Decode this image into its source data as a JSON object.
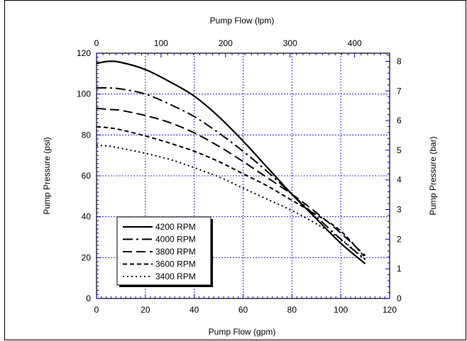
{
  "chart_data": {
    "type": "line",
    "xlabel_bottom": "Pump Flow (gpm)",
    "xlabel_top": "Pump Flow (lpm)",
    "ylabel_left": "Pump Pressure (psi)",
    "ylabel_right": "Pump Pressure (bar)",
    "xlim": [
      0,
      120
    ],
    "ylim": [
      0,
      120
    ],
    "x_ticks": [
      0,
      20,
      40,
      60,
      80,
      100,
      120
    ],
    "y_ticks": [
      0,
      20,
      40,
      60,
      80,
      100,
      120
    ],
    "x_top_ticks": [
      0,
      100,
      200,
      300,
      400
    ],
    "y_right_ticks": [
      0,
      1,
      2,
      3,
      4,
      5,
      6,
      7,
      8
    ],
    "grid": true,
    "grid_color": "#0000cc",
    "legend_position": "bottom-left",
    "series": [
      {
        "name": "4200 RPM",
        "dash": "solid",
        "x": [
          0,
          5,
          10,
          20,
          30,
          40,
          50,
          60,
          70,
          80,
          90,
          100,
          110
        ],
        "y": [
          115,
          116,
          115.5,
          112,
          106,
          99,
          89,
          77,
          64,
          51,
          39,
          27,
          17
        ]
      },
      {
        "name": "4000 RPM",
        "dash": "dashdot",
        "x": [
          0,
          5,
          10,
          20,
          30,
          40,
          50,
          60,
          70,
          80,
          90,
          100,
          110
        ],
        "y": [
          103,
          103,
          102.5,
          100,
          95,
          89,
          81,
          72,
          62,
          51,
          40,
          29,
          19
        ]
      },
      {
        "name": "3800 RPM",
        "dash": "longdash",
        "x": [
          0,
          5,
          10,
          20,
          30,
          40,
          50,
          60,
          70,
          80,
          90,
          100,
          110
        ],
        "y": [
          93,
          92.5,
          92,
          89.5,
          86,
          81,
          74.5,
          67,
          59,
          51,
          42,
          32,
          21
        ]
      },
      {
        "name": "3600 RPM",
        "dash": "shortdash",
        "x": [
          0,
          5,
          10,
          20,
          30,
          40,
          50,
          60,
          70,
          80,
          90,
          100,
          110
        ],
        "y": [
          84,
          83.5,
          82.5,
          79.5,
          76,
          72,
          67,
          61,
          55,
          48,
          41,
          33,
          20
        ]
      },
      {
        "name": "3400 RPM",
        "dash": "dotted",
        "x": [
          0,
          5,
          10,
          20,
          30,
          40,
          50,
          60,
          70,
          80,
          90,
          100,
          110
        ],
        "y": [
          75,
          74.5,
          73.5,
          71,
          68,
          64,
          59.5,
          54,
          48.5,
          43,
          36.5,
          29,
          19
        ]
      }
    ]
  }
}
